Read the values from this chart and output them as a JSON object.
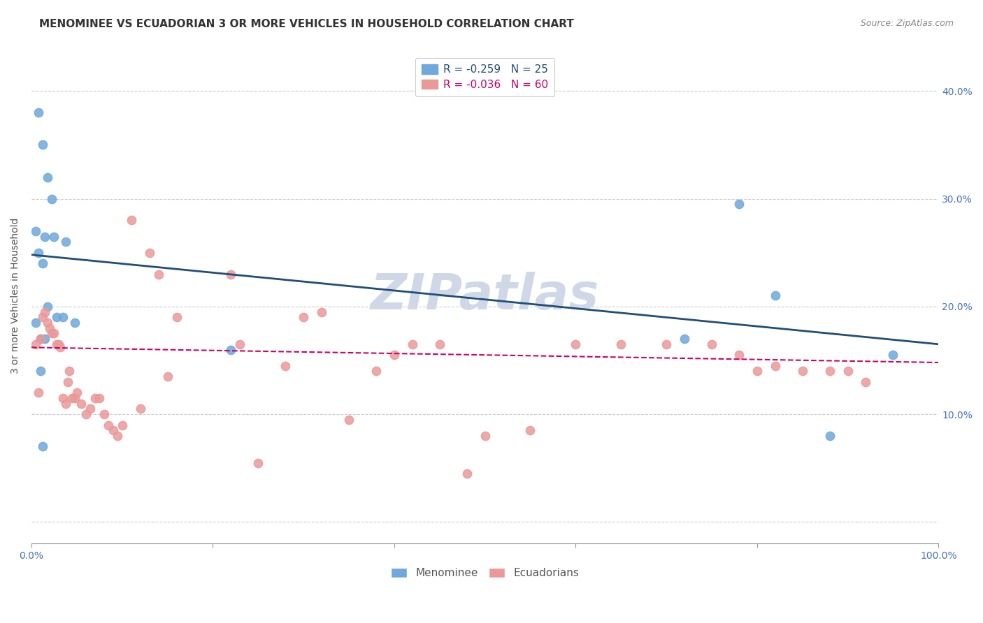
{
  "title": "MENOMINEE VS ECUADORIAN 3 OR MORE VEHICLES IN HOUSEHOLD CORRELATION CHART",
  "source": "Source: ZipAtlas.com",
  "ylabel": "3 or more Vehicles in Household",
  "ytick_values": [
    0.0,
    0.1,
    0.2,
    0.3,
    0.4
  ],
  "xlim": [
    0.0,
    1.0
  ],
  "ylim": [
    -0.02,
    0.44
  ],
  "watermark": "ZIPatlas",
  "legend_blue_r": "R = -0.259",
  "legend_blue_n": "N = 25",
  "legend_pink_r": "R = -0.036",
  "legend_pink_n": "N = 60",
  "blue_color": "#6fa8dc",
  "pink_color": "#ea9999",
  "blue_line_color": "#1f4e79",
  "pink_line_color": "#cc0066",
  "menominee_x": [
    0.008,
    0.012,
    0.018,
    0.022,
    0.005,
    0.015,
    0.025,
    0.038,
    0.008,
    0.012,
    0.018,
    0.028,
    0.005,
    0.01,
    0.015,
    0.035,
    0.01,
    0.012,
    0.048,
    0.22,
    0.72,
    0.78,
    0.82,
    0.88,
    0.95
  ],
  "menominee_y": [
    0.38,
    0.35,
    0.32,
    0.3,
    0.27,
    0.265,
    0.265,
    0.26,
    0.25,
    0.24,
    0.2,
    0.19,
    0.185,
    0.17,
    0.17,
    0.19,
    0.14,
    0.07,
    0.185,
    0.16,
    0.17,
    0.295,
    0.21,
    0.08,
    0.155
  ],
  "ecuadorian_x": [
    0.005,
    0.008,
    0.01,
    0.012,
    0.015,
    0.018,
    0.02,
    0.022,
    0.025,
    0.028,
    0.03,
    0.032,
    0.035,
    0.038,
    0.04,
    0.042,
    0.045,
    0.048,
    0.05,
    0.055,
    0.06,
    0.065,
    0.07,
    0.075,
    0.08,
    0.085,
    0.09,
    0.095,
    0.1,
    0.11,
    0.12,
    0.13,
    0.14,
    0.15,
    0.16,
    0.22,
    0.23,
    0.25,
    0.28,
    0.3,
    0.32,
    0.35,
    0.38,
    0.4,
    0.42,
    0.45,
    0.48,
    0.5,
    0.55,
    0.6,
    0.65,
    0.7,
    0.75,
    0.78,
    0.8,
    0.82,
    0.85,
    0.88,
    0.9,
    0.92
  ],
  "ecuadorian_y": [
    0.165,
    0.12,
    0.17,
    0.19,
    0.195,
    0.185,
    0.18,
    0.175,
    0.175,
    0.165,
    0.165,
    0.162,
    0.115,
    0.11,
    0.13,
    0.14,
    0.115,
    0.115,
    0.12,
    0.11,
    0.1,
    0.105,
    0.115,
    0.115,
    0.1,
    0.09,
    0.085,
    0.08,
    0.09,
    0.28,
    0.105,
    0.25,
    0.23,
    0.135,
    0.19,
    0.23,
    0.165,
    0.055,
    0.145,
    0.19,
    0.195,
    0.095,
    0.14,
    0.155,
    0.165,
    0.165,
    0.045,
    0.08,
    0.085,
    0.165,
    0.165,
    0.165,
    0.165,
    0.155,
    0.14,
    0.145,
    0.14,
    0.14,
    0.14,
    0.13
  ],
  "blue_trendline_y_start": 0.248,
  "blue_trendline_y_end": 0.165,
  "pink_trendline_y_start": 0.162,
  "pink_trendline_y_end": 0.148,
  "marker_size": 80,
  "title_fontsize": 11,
  "axis_label_fontsize": 10,
  "tick_fontsize": 10,
  "background_color": "#ffffff",
  "grid_color": "#cccccc",
  "watermark_color": "#d0d8e8",
  "watermark_fontsize": 52
}
